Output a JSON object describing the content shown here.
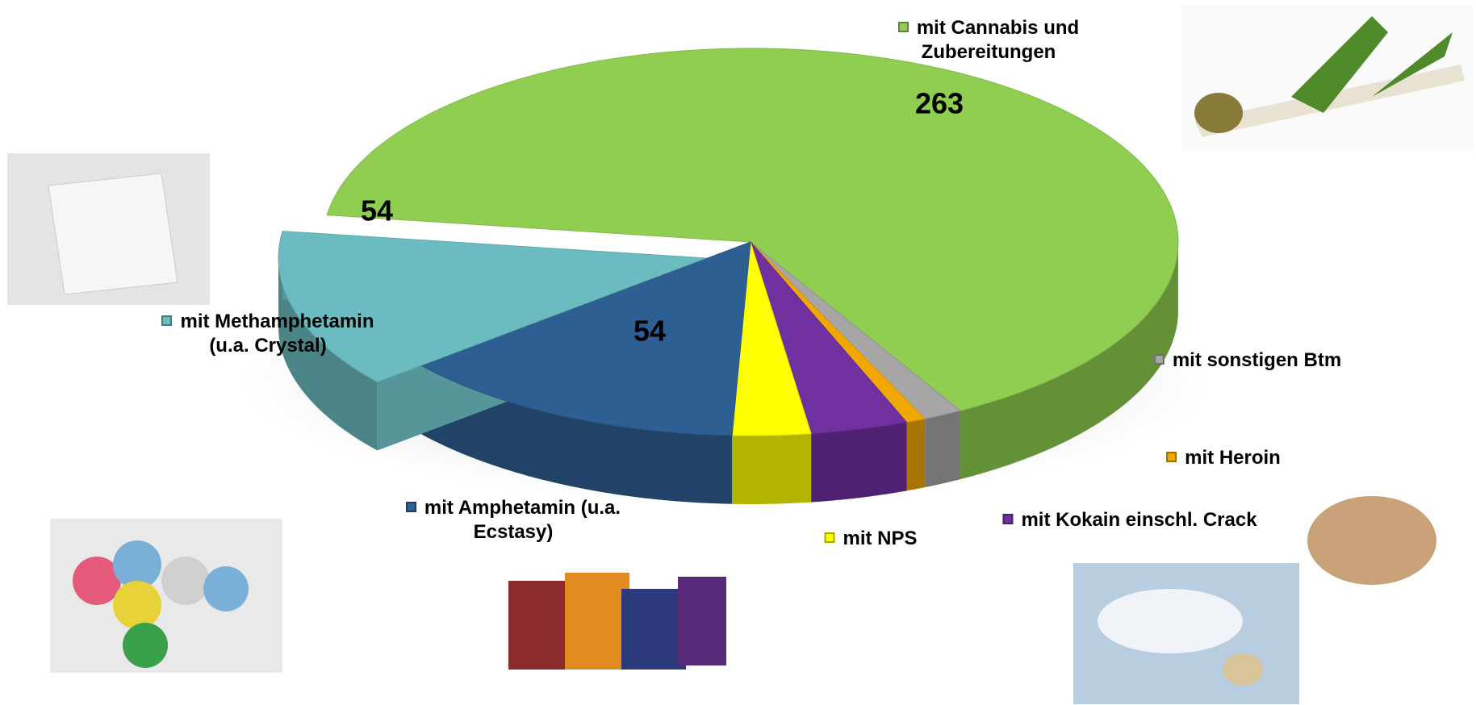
{
  "chart_data": {
    "type": "pie3d",
    "categories": [
      "mit Cannabis und Zubereitungen",
      "mit sonstigen Btm",
      "mit Heroin",
      "mit Kokain einschl. Crack",
      "mit NPS",
      "mit Amphetamin (u.a. Ecstasy)",
      "mit Methamphetamin (u.a. Crystal)"
    ],
    "values": [
      263,
      6,
      3,
      15,
      12,
      54,
      54
    ],
    "colors": [
      "#8fce50",
      "#a6a6a6",
      "#f0a800",
      "#7030a0",
      "#ffff00",
      "#2e5f93",
      "#6bbcc0"
    ]
  }
}
